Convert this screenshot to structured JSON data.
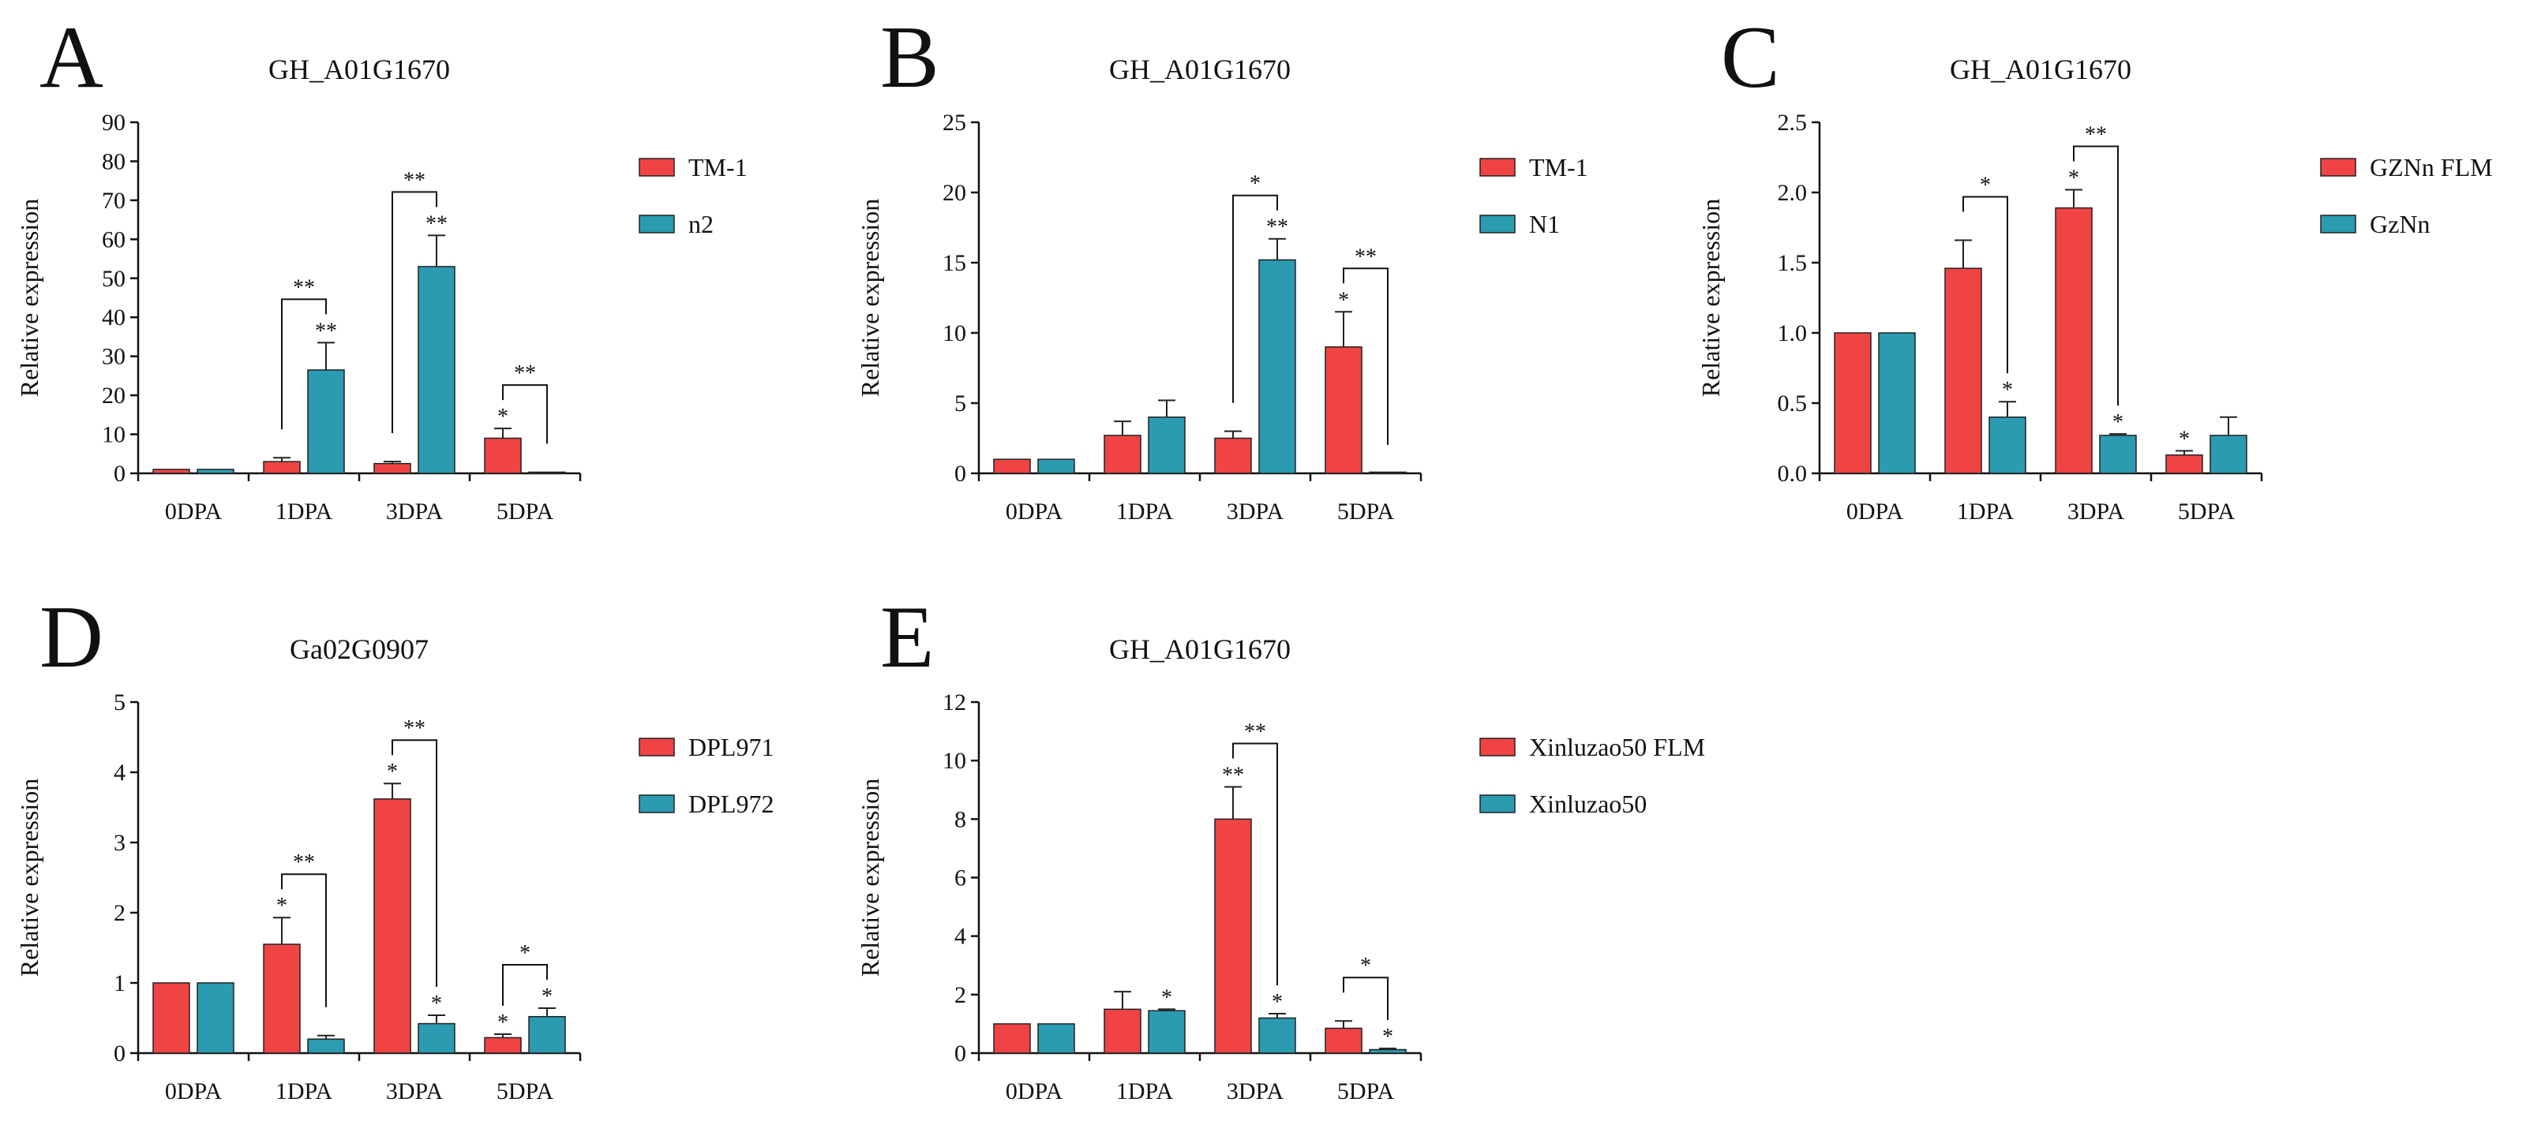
{
  "colors": {
    "series1": "#f04444",
    "series2": "#2a9bb0",
    "axis": "#111111"
  },
  "chart_data": [
    {
      "type": "bar",
      "panel_label": "A",
      "title": "GH_A01G1670",
      "ylabel": "Relative expression",
      "xlabel": "",
      "ylim": [
        0,
        90
      ],
      "yticks": [
        0,
        10,
        20,
        30,
        40,
        50,
        60,
        70,
        80,
        90
      ],
      "ytick_labels": [
        "0",
        "10",
        "20",
        "30",
        "40",
        "50",
        "60",
        "70",
        "80",
        "90"
      ],
      "categories": [
        "0DPA",
        "1DPA",
        "3DPA",
        "5DPA"
      ],
      "series": [
        {
          "name": "TM-1",
          "values": [
            1,
            3,
            2.5,
            9
          ],
          "errors": [
            0,
            1,
            0.5,
            2.5
          ],
          "sig": [
            "",
            "",
            "",
            "*"
          ]
        },
        {
          "name": "n2",
          "values": [
            1,
            26.5,
            53,
            0.3
          ],
          "errors": [
            0,
            7,
            8,
            0
          ],
          "sig": [
            "",
            "**",
            "**",
            ""
          ]
        }
      ],
      "comparisons": [
        {
          "category": 1,
          "label": "**"
        },
        {
          "category": 2,
          "label": "**"
        },
        {
          "category": 3,
          "label": "**"
        }
      ]
    },
    {
      "type": "bar",
      "panel_label": "B",
      "title": "GH_A01G1670",
      "ylabel": "Relative expression",
      "xlabel": "",
      "ylim": [
        0,
        25
      ],
      "yticks": [
        0,
        5,
        10,
        15,
        20,
        25
      ],
      "ytick_labels": [
        "0",
        "5",
        "10",
        "15",
        "20",
        "25"
      ],
      "categories": [
        "0DPA",
        "1DPA",
        "3DPA",
        "5DPA"
      ],
      "series": [
        {
          "name": "TM-1",
          "values": [
            1,
            2.7,
            2.5,
            9
          ],
          "errors": [
            0,
            1,
            0.5,
            2.5
          ],
          "sig": [
            "",
            "",
            "",
            "*"
          ]
        },
        {
          "name": "N1",
          "values": [
            1,
            4,
            15.2,
            0
          ],
          "errors": [
            0,
            1.2,
            1.5,
            0
          ],
          "sig": [
            "",
            "",
            "**",
            ""
          ]
        }
      ],
      "comparisons": [
        {
          "category": 2,
          "label": "*"
        },
        {
          "category": 3,
          "label": "**"
        }
      ]
    },
    {
      "type": "bar",
      "panel_label": "C",
      "title": "GH_A01G1670",
      "ylabel": "Relative expression",
      "xlabel": "",
      "ylim": [
        0,
        2.5
      ],
      "yticks": [
        0,
        0.5,
        1.0,
        1.5,
        2.0,
        2.5
      ],
      "ytick_labels": [
        "0.0",
        "0.5",
        "1.0",
        "1.5",
        "2.0",
        "2.5"
      ],
      "categories": [
        "0DPA",
        "1DPA",
        "3DPA",
        "5DPA"
      ],
      "series": [
        {
          "name": "GZNn FLM",
          "values": [
            1,
            1.46,
            1.89,
            0.13
          ],
          "errors": [
            0,
            0.2,
            0.13,
            0.03
          ],
          "sig": [
            "",
            "",
            "*",
            "*"
          ]
        },
        {
          "name": "GzNn",
          "values": [
            1,
            0.4,
            0.27,
            0.27
          ],
          "errors": [
            0,
            0.11,
            0.01,
            0.13
          ],
          "sig": [
            "",
            "*",
            "*",
            ""
          ]
        }
      ],
      "comparisons": [
        {
          "category": 1,
          "label": "*"
        },
        {
          "category": 2,
          "label": "**"
        }
      ]
    },
    {
      "type": "bar",
      "panel_label": "D",
      "title": "Ga02G0907",
      "ylabel": "Relative expression",
      "xlabel": "",
      "ylim": [
        0,
        5
      ],
      "yticks": [
        0,
        1,
        2,
        3,
        4,
        5
      ],
      "ytick_labels": [
        "0",
        "1",
        "2",
        "3",
        "4",
        "5"
      ],
      "categories": [
        "0DPA",
        "1DPA",
        "3DPA",
        "5DPA"
      ],
      "series": [
        {
          "name": "DPL971",
          "values": [
            1,
            1.55,
            3.62,
            0.22
          ],
          "errors": [
            0,
            0.38,
            0.22,
            0.05
          ],
          "sig": [
            "",
            "*",
            "*",
            "*"
          ]
        },
        {
          "name": "DPL972",
          "values": [
            1,
            0.2,
            0.42,
            0.52
          ],
          "errors": [
            0,
            0.05,
            0.12,
            0.12
          ],
          "sig": [
            "",
            "",
            "*",
            "*"
          ]
        }
      ],
      "comparisons": [
        {
          "category": 1,
          "label": "**"
        },
        {
          "category": 2,
          "label": "**"
        },
        {
          "category": 3,
          "label": "*"
        }
      ]
    },
    {
      "type": "bar",
      "panel_label": "E",
      "title": "GH_A01G1670",
      "ylabel": "Relative expression",
      "xlabel": "",
      "ylim": [
        0,
        12
      ],
      "yticks": [
        0,
        2,
        4,
        6,
        8,
        10,
        12
      ],
      "ytick_labels": [
        "0",
        "2",
        "4",
        "6",
        "8",
        "10",
        "12"
      ],
      "categories": [
        "0DPA",
        "1DPA",
        "3DPA",
        "5DPA"
      ],
      "series": [
        {
          "name": "Xinluzao50 FLM",
          "values": [
            1,
            1.5,
            8,
            0.85
          ],
          "errors": [
            0,
            0.6,
            1.1,
            0.25
          ],
          "sig": [
            "",
            "",
            "**",
            ""
          ]
        },
        {
          "name": "Xinluzao50",
          "values": [
            1,
            1.45,
            1.2,
            0.12
          ],
          "errors": [
            0,
            0.05,
            0.15,
            0.04
          ],
          "sig": [
            "",
            "*",
            "*",
            "*"
          ]
        }
      ],
      "comparisons": [
        {
          "category": 2,
          "label": "**"
        },
        {
          "category": 3,
          "label": "*"
        }
      ]
    }
  ]
}
